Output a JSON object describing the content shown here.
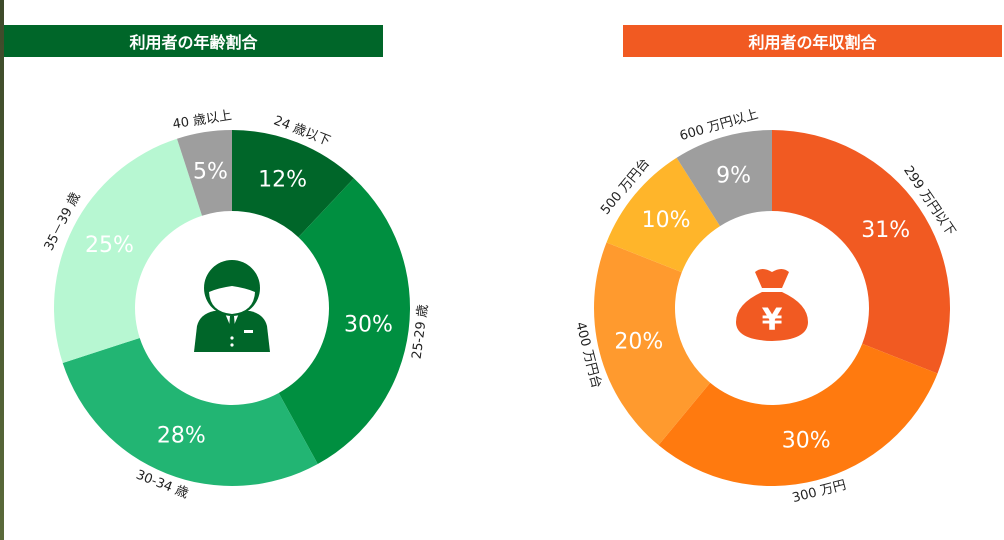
{
  "chart_data": [
    {
      "type": "pie",
      "donut": true,
      "title": "利用者の年齢割合",
      "title_bg": "#006629",
      "center_icon": "businessman-icon",
      "icon_color": "#006629",
      "slices": [
        {
          "label": "24 歳以下",
          "value": 12,
          "value_label": "12%",
          "color": "#006629"
        },
        {
          "label": "25-29 歳",
          "value": 30,
          "value_label": "30%",
          "color": "#008f40"
        },
        {
          "label": "30-34 歳",
          "value": 28,
          "value_label": "28%",
          "color": "#22b573"
        },
        {
          "label": "35－39 歳",
          "value": 25,
          "value_label": "25%",
          "color": "#b7f7d2"
        },
        {
          "label": "40 歳以上",
          "value": 5,
          "value_label": "5%",
          "color": "#9e9e9e"
        }
      ]
    },
    {
      "type": "pie",
      "donut": true,
      "title": "利用者の年収割合",
      "title_bg": "#f15a22",
      "center_icon": "money-bag-yen-icon",
      "icon_color": "#f15a22",
      "slices": [
        {
          "label": "299 万円以下",
          "value": 31,
          "value_label": "31%",
          "color": "#f15a22"
        },
        {
          "label": "300 万円",
          "value": 30,
          "value_label": "30%",
          "color": "#ff7a0f"
        },
        {
          "label": "400 万円台",
          "value": 20,
          "value_label": "20%",
          "color": "#ff9a2e"
        },
        {
          "label": "500 万円台",
          "value": 10,
          "value_label": "10%",
          "color": "#ffb52a"
        },
        {
          "label": "600 万円以上",
          "value": 9,
          "value_label": "9%",
          "color": "#9e9e9e"
        }
      ]
    }
  ]
}
